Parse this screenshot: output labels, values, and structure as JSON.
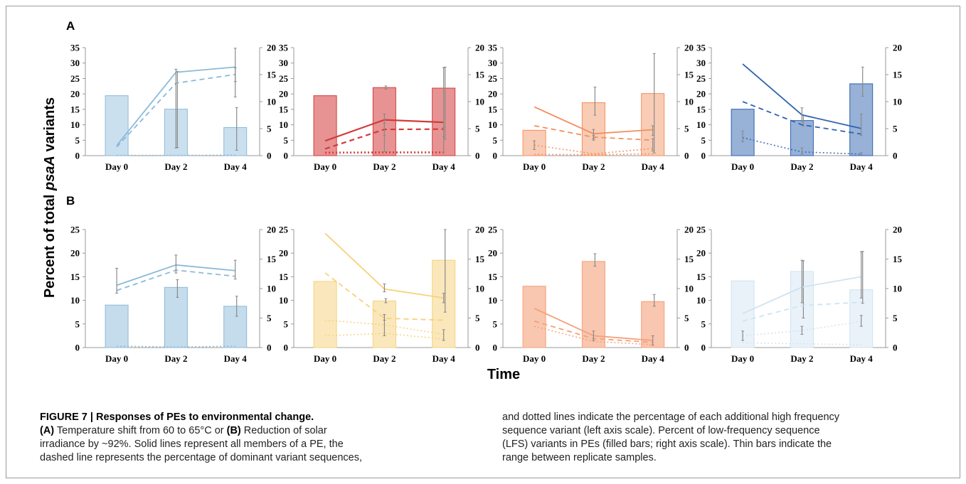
{
  "figure": {
    "panel_labels": [
      "A",
      "B"
    ],
    "y_axis_title_prefix": "Percent of total ",
    "y_axis_title_italic": "psaA",
    "y_axis_title_suffix": " variants",
    "x_axis_title": "Time"
  },
  "caption": {
    "title": "FIGURE 7 | Responses of PEs to environmental change.",
    "line1": [
      {
        "text": "(A)",
        "bold": true
      },
      {
        "text": " Temperature shift from 60 to 65°C or "
      },
      {
        "text": "(B)",
        "bold": true
      },
      {
        "text": " Reduction of solar"
      }
    ],
    "line2": "irradiance by ~92%. Solid lines represent all members of a PE, the",
    "line3": "dashed line represents the percentage of dominant variant sequences,",
    "line4": "and dotted lines indicate the percentage of each additional high frequency",
    "line5": "sequence variant (left axis scale). Percent of low-frequency sequence",
    "line6": "(LFS) variants in PEs (filled bars; right axis scale). Thin bars indicate the",
    "line7": "range between replicate samples."
  },
  "chart_data": [
    {
      "type": "bar+line",
      "panel": "A",
      "color": "#8bbad9",
      "bar_opacity": 0.45,
      "categories": [
        "Day 0",
        "Day 2",
        "Day 4"
      ],
      "ylim_left": [
        0,
        35
      ],
      "yticks_left": [
        0,
        5,
        10,
        15,
        20,
        25,
        30,
        35
      ],
      "ylim_right": [
        0,
        20
      ],
      "yticks_right": [
        0,
        5,
        10,
        15,
        20
      ],
      "bars_right": [
        11.1,
        8.6,
        5.2
      ],
      "bar_err": [
        null,
        [
          1.5,
          15.6
        ],
        [
          1.0,
          8.9
        ]
      ],
      "solid": [
        3.3,
        27.0,
        28.7
      ],
      "solid_err": [
        null,
        [
          2.5,
          28.0
        ],
        [
          19.0,
          34.8
        ]
      ],
      "dashed": [
        2.8,
        23.5,
        26.3
      ],
      "dashed_err": [
        null,
        null,
        [
          24.0,
          28.5
        ]
      ],
      "dotted": [
        [
          0.1,
          0.1,
          0.2
        ]
      ]
    },
    {
      "type": "bar+line",
      "panel": "A",
      "color": "#d43a3a",
      "bar_opacity": 0.55,
      "categories": [
        "Day 0",
        "Day 2",
        "Day 4"
      ],
      "ylim_left": [
        0,
        35
      ],
      "yticks_left": [
        0,
        5,
        10,
        15,
        20,
        25,
        30,
        35
      ],
      "ylim_right": [
        0,
        20
      ],
      "yticks_right": [
        0,
        5,
        10,
        15,
        20
      ],
      "bars_right": [
        11.1,
        12.6,
        12.5
      ],
      "bar_err": [
        null,
        [
          12.3,
          12.9
        ],
        [
          3.0,
          16.4
        ]
      ],
      "solid": [
        4.8,
        11.6,
        10.8
      ],
      "solid_err": [
        null,
        [
          1.2,
          13.5
        ],
        [
          1.0,
          28.5
        ]
      ],
      "dashed": [
        2.2,
        8.5,
        8.6
      ],
      "dashed_err": [
        null,
        [
          6.5,
          10.5
        ],
        [
          6.0,
          9.2
        ]
      ],
      "dotted": [
        [
          1.1,
          1.2,
          1.2
        ],
        [
          0.8,
          0.9,
          0.9
        ]
      ]
    },
    {
      "type": "bar+line",
      "panel": "A",
      "color": "#f28f5c",
      "bar_opacity": 0.45,
      "categories": [
        "Day 0",
        "Day 2",
        "Day 4"
      ],
      "ylim_left": [
        0,
        35
      ],
      "yticks_left": [
        0,
        5,
        10,
        15,
        20,
        25,
        30,
        35
      ],
      "ylim_right": [
        0,
        20
      ],
      "yticks_right": [
        0,
        5,
        10,
        15,
        20
      ],
      "bars_right": [
        4.7,
        9.8,
        11.5
      ],
      "bar_err": [
        null,
        [
          7.5,
          12.7
        ],
        [
          0.5,
          18.9
        ]
      ],
      "solid": [
        15.8,
        7.1,
        8.4
      ],
      "solid_err": [
        null,
        [
          5.5,
          8.5
        ],
        [
          6.5,
          9.7
        ]
      ],
      "dashed": [
        9.7,
        6.0,
        5.0
      ],
      "dashed_err": [
        null,
        [
          5.0,
          6.5
        ],
        [
          1.5,
          5.5
        ]
      ],
      "dotted": [
        [
          3.4,
          0.6,
          2.3
        ],
        [
          0.4,
          0.3,
          0.6
        ]
      ],
      "dotted_err": [
        [
          2.0,
          4.8
        ],
        null,
        null
      ]
    },
    {
      "type": "bar+line",
      "panel": "A",
      "color": "#2f63b0",
      "bar_opacity": 0.5,
      "categories": [
        "Day 0",
        "Day 2",
        "Day 4"
      ],
      "ylim_left": [
        0,
        35
      ],
      "yticks_left": [
        0,
        5,
        10,
        15,
        20,
        25,
        30,
        35
      ],
      "ylim_right": [
        0,
        20
      ],
      "yticks_right": [
        0,
        5,
        10,
        15,
        20
      ],
      "bars_right": [
        8.6,
        6.5,
        13.3
      ],
      "bar_err": [
        null,
        [
          5.5,
          7.5
        ],
        [
          11.0,
          16.4
        ]
      ],
      "solid": [
        29.7,
        13.2,
        8.8
      ],
      "solid_err": [
        null,
        [
          11.0,
          15.5
        ],
        [
          6.5,
          13.5
        ]
      ],
      "dashed": [
        17.5,
        10.0,
        7.0
      ],
      "dashed_err": [
        null,
        null,
        null
      ],
      "dotted": [
        [
          5.8,
          1.2,
          0.5
        ]
      ],
      "dotted_err": [
        [
          4.5,
          8.0
        ],
        [
          0.5,
          2.5
        ],
        [
          0.3,
          1.0
        ]
      ]
    },
    {
      "type": "bar+line",
      "panel": "B",
      "color": "#8bbad9",
      "bar_opacity": 0.5,
      "categories": [
        "Day 0",
        "Day 2",
        "Day 4"
      ],
      "ylim_left": [
        0,
        25
      ],
      "yticks_left": [
        0,
        5,
        10,
        15,
        20,
        25
      ],
      "ylim_right": [
        0,
        20
      ],
      "yticks_right": [
        0,
        5,
        10,
        15,
        20
      ],
      "bars_right": [
        7.2,
        10.2,
        7.0
      ],
      "bar_err": [
        null,
        [
          8.5,
          11.5
        ],
        [
          5.3,
          8.7
        ]
      ],
      "solid": [
        13.2,
        17.5,
        16.3
      ],
      "solid_err": [
        [
          11.5,
          16.8
        ],
        [
          15.8,
          19.6
        ],
        [
          14.5,
          18.5
        ]
      ],
      "dashed": [
        12.1,
        16.4,
        15.1
      ],
      "dashed_err": [
        null,
        null,
        null
      ],
      "dotted": [
        [
          0.3,
          0.1,
          0.3
        ]
      ]
    },
    {
      "type": "bar+line",
      "panel": "B",
      "color": "#f6d27a",
      "bar_opacity": 0.5,
      "categories": [
        "Day 0",
        "Day 2",
        "Day 4"
      ],
      "ylim_left": [
        0,
        25
      ],
      "yticks_left": [
        0,
        5,
        10,
        15,
        20,
        25
      ],
      "ylim_right": [
        0,
        20
      ],
      "yticks_right": [
        0,
        5,
        10,
        15,
        20
      ],
      "bars_right": [
        11.2,
        7.9,
        14.8
      ],
      "bar_err": [
        null,
        [
          7.6,
          8.3
        ],
        [
          6.0,
          20.0
        ]
      ],
      "solid": [
        24.2,
        12.4,
        10.5
      ],
      "solid_err": [
        null,
        [
          11.8,
          13.5
        ],
        [
          9.5,
          11.5
        ]
      ],
      "dashed": [
        15.8,
        6.2,
        5.8
      ],
      "dashed_err": [
        null,
        [
          5.8,
          7.0
        ],
        null
      ],
      "dotted": [
        [
          5.8,
          4.8,
          2.8
        ],
        [
          2.5,
          3.0,
          1.8
        ]
      ],
      "dotted_err": [
        null,
        [
          2.5,
          7.0
        ],
        [
          1.5,
          3.8
        ]
      ]
    },
    {
      "type": "bar+line",
      "panel": "B",
      "color": "#f5a07a",
      "bar_opacity": 0.6,
      "categories": [
        "Day 0",
        "Day 2",
        "Day 4"
      ],
      "ylim_left": [
        0,
        25
      ],
      "yticks_left": [
        0,
        5,
        10,
        15,
        20,
        25
      ],
      "ylim_right": [
        0,
        20
      ],
      "yticks_right": [
        0,
        5,
        10,
        15,
        20
      ],
      "bars_right": [
        10.4,
        14.6,
        7.8
      ],
      "bar_err": [
        null,
        [
          13.8,
          15.9
        ],
        [
          7.0,
          9.0
        ]
      ],
      "solid": [
        8.3,
        2.5,
        1.5
      ],
      "solid_err": [
        null,
        [
          1.5,
          3.5
        ],
        [
          0.5,
          2.5
        ]
      ],
      "dashed": [
        5.6,
        1.9,
        1.1
      ],
      "dashed_err": [
        null,
        null,
        null
      ],
      "dotted": [
        [
          4.5,
          1.3,
          0.6
        ]
      ]
    },
    {
      "type": "bar+line",
      "panel": "B",
      "color": "#cfe3f1",
      "bar_opacity": 0.45,
      "categories": [
        "Day 0",
        "Day 2",
        "Day 4"
      ],
      "ylim_left": [
        0,
        25
      ],
      "yticks_left": [
        0,
        5,
        10,
        15,
        20,
        25
      ],
      "ylim_right": [
        0,
        20
      ],
      "yticks_right": [
        0,
        5,
        10,
        15,
        20
      ],
      "bars_right": [
        11.3,
        12.9,
        9.8
      ],
      "bar_err": [
        null,
        [
          5.0,
          14.7
        ],
        [
          7.5,
          16.3
        ]
      ],
      "solid": [
        7.2,
        12.8,
        15.0
      ],
      "solid_err": [
        null,
        [
          9.5,
          18.5
        ],
        [
          10.5,
          20.3
        ]
      ],
      "dashed": [
        5.6,
        8.9,
        9.6
      ],
      "dashed_err": [
        null,
        null,
        null
      ],
      "dotted": [
        [
          2.5,
          3.6,
          5.5
        ],
        [
          1.0,
          0.8,
          0.6
        ]
      ],
      "dotted_err": [
        [
          1.5,
          3.5
        ],
        [
          2.8,
          4.5
        ],
        [
          4.5,
          6.8
        ]
      ]
    }
  ]
}
